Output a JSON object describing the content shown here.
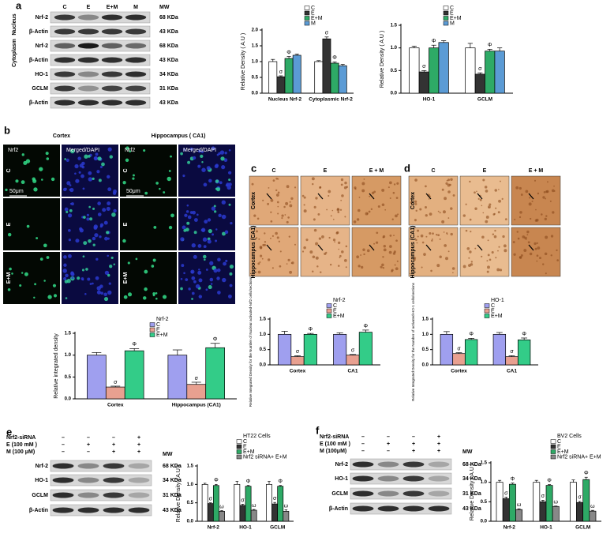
{
  "figure": {
    "panel_labels": [
      "a",
      "b",
      "c",
      "d",
      "e",
      "f"
    ],
    "blot_a": {
      "lanes": [
        "C",
        "E",
        "E+M",
        "M"
      ],
      "mw": "MW",
      "groups": [
        "Nucleus",
        "Cytoplasm"
      ],
      "rows": [
        [
          "Nrf-2",
          "68 KDa"
        ],
        [
          "β-Actin",
          "43 KDa"
        ],
        [
          "Nrf-2",
          "68 KDa"
        ],
        [
          "β-Actin",
          "43 KDa"
        ],
        [
          "HO-1",
          "34 KDa"
        ],
        [
          "GCLM",
          "31 KDa"
        ],
        [
          "β-Actin",
          "43 KDa"
        ]
      ]
    },
    "micro_b": {
      "regions": [
        "Cortex",
        "Hippocampus ( CA1)"
      ],
      "columns": [
        "Nrf2",
        "Merged/DAPI",
        "Nrf2",
        "Merged/DAPI"
      ],
      "rows": [
        "C",
        "E",
        "E+M"
      ],
      "scale": [
        "50μm",
        "50μm"
      ]
    },
    "ihc_c": {
      "columns": [
        "C",
        "E",
        "E + M"
      ],
      "rows": [
        "Cortex",
        "Hippocampus (CA1)"
      ]
    },
    "ihc_d": {
      "columns": [
        "C",
        "E",
        "E + M"
      ],
      "rows": [
        "Cortex",
        "Hippocampus (CA1)"
      ]
    },
    "blot_e": {
      "treatments": [
        [
          "Nrf2-siRNA",
          "–",
          "–",
          "–",
          "+"
        ],
        [
          "E (100 mM )",
          "–",
          "+",
          "+",
          "+"
        ],
        [
          "M (100 μM)",
          "–",
          "–",
          "+",
          "+"
        ]
      ],
      "mw": "MW",
      "rows": [
        [
          "Nrf-2",
          "68 KDa"
        ],
        [
          "HO-1",
          "34 KDa"
        ],
        [
          "GCLM",
          "31 KDa"
        ],
        [
          "β-Actin",
          "43 KDa"
        ]
      ]
    },
    "blot_f": {
      "treatments": [
        [
          "Nrf2-siRNA",
          "–",
          "–",
          "–",
          "+"
        ],
        [
          "E (100 mM )",
          "–",
          "+",
          "+",
          "+"
        ],
        [
          "M (100μM)",
          "–",
          "–",
          "+",
          "+"
        ]
      ],
      "mw": "MW",
      "rows": [
        [
          "Nrf-2",
          "68 KDa"
        ],
        [
          "HO-1",
          "34 KDa"
        ],
        [
          "GCLM",
          "31 KDa"
        ],
        [
          "β-Actin",
          "43 KDa"
        ]
      ]
    }
  },
  "chart_data": [
    {
      "type": "bar",
      "ylabel": "Relative Density ( A.U )",
      "categories": [
        "Nucleus Nrf-2",
        "Cytoplasmic Nrf-2"
      ],
      "ylim": [
        0,
        2
      ],
      "yticks": [
        {
          "value": 0,
          "label": "0.0"
        },
        0.5,
        {
          "value": 1,
          "label": "1.0"
        },
        1.5,
        {
          "value": 2,
          "label": "2.0"
        }
      ],
      "series": [
        {
          "name": "C",
          "color": "#ffffff",
          "values": [
            1.0,
            1.0
          ],
          "errors": [
            0.07,
            0.03
          ]
        },
        {
          "name": "E",
          "color": "#333333",
          "values": [
            0.52,
            1.72
          ],
          "errors": [
            0.03,
            0.06
          ],
          "marks": [
            "σ",
            "σ"
          ]
        },
        {
          "name": "E+M",
          "color": "#2eaa66",
          "values": [
            1.1,
            0.95
          ],
          "errors": [
            0.06,
            0.04
          ],
          "marks": [
            "Φ",
            "Φ"
          ]
        },
        {
          "name": "M",
          "color": "#5b9bd5",
          "values": [
            1.2,
            0.87
          ],
          "errors": [
            0.04,
            0.04
          ]
        }
      ]
    },
    {
      "type": "bar",
      "ylabel": "Relative Density ( A.U )",
      "categories": [
        "HO-1",
        "GCLM"
      ],
      "ylim": [
        0,
        1.5
      ],
      "yticks": [
        {
          "value": 0,
          "label": "0.0"
        },
        0.5,
        {
          "value": 1,
          "label": "1.0"
        },
        1.5
      ],
      "series": [
        {
          "name": "C",
          "color": "#ffffff",
          "values": [
            1.0,
            1.0
          ],
          "errors": [
            0.04,
            0.1
          ]
        },
        {
          "name": "E",
          "color": "#333333",
          "values": [
            0.47,
            0.42
          ],
          "errors": [
            0.03,
            0.03
          ],
          "marks": [
            "σ",
            "σ"
          ]
        },
        {
          "name": "E+M",
          "color": "#2eaa66",
          "values": [
            1.0,
            0.93
          ],
          "errors": [
            0.06,
            0.04
          ],
          "marks": [
            "Φ",
            "Φ"
          ]
        },
        {
          "name": "M",
          "color": "#5b9bd5",
          "values": [
            1.12,
            0.93
          ],
          "errors": [
            0.04,
            0.07
          ]
        }
      ]
    },
    {
      "type": "bar",
      "ylabel": "Relative integrated density",
      "legend_title": "Nrf-2",
      "categories": [
        "Cortex",
        "Hippocampus (CA1)"
      ],
      "ylim": [
        0,
        1.5
      ],
      "yticks": [
        {
          "value": 0,
          "label": "0.0"
        },
        0.5,
        {
          "value": 1,
          "label": "1.0"
        },
        1.5
      ],
      "series": [
        {
          "name": "C",
          "color": "#9f9fef",
          "values": [
            1.0,
            1.0
          ],
          "errors": [
            0.06,
            0.12
          ]
        },
        {
          "name": "E",
          "color": "#e8a090",
          "values": [
            0.27,
            0.33
          ],
          "errors": [
            0.02,
            0.05
          ],
          "marks": [
            "σ",
            "σ"
          ]
        },
        {
          "name": "E+M",
          "color": "#33cc88",
          "values": [
            1.1,
            1.17
          ],
          "errors": [
            0.05,
            0.1
          ],
          "marks": [
            "Φ",
            "Φ"
          ]
        }
      ]
    },
    {
      "type": "bar",
      "ylabel": "Relative Integrated Density for the Number of Nuclear activated-Nrf2 cells/sections",
      "legend_title": "Nrf-2",
      "categories": [
        "Cortex",
        "CA1"
      ],
      "ylim": [
        0,
        1.5
      ],
      "yticks": [
        {
          "value": 0,
          "label": "0.0"
        },
        0.5,
        {
          "value": 1,
          "label": "1.0"
        },
        1.5
      ],
      "series": [
        {
          "name": "C",
          "color": "#9f9fef",
          "values": [
            1.0,
            1.0
          ],
          "errors": [
            0.1,
            0.05
          ]
        },
        {
          "name": "E",
          "color": "#e8a090",
          "values": [
            0.27,
            0.32
          ],
          "errors": [
            0.03,
            0.02
          ],
          "marks": [
            "σ",
            "σ"
          ]
        },
        {
          "name": "E+M",
          "color": "#33cc88",
          "values": [
            1.0,
            1.07
          ],
          "errors": [
            0.03,
            0.07
          ],
          "marks": [
            "Φ",
            "Φ"
          ]
        }
      ]
    },
    {
      "type": "bar",
      "ylabel": "Relative Integrated Density for the Number of activated-HO-1 cells/sections",
      "legend_title": "HO-1",
      "categories": [
        "Cortex",
        "CA1"
      ],
      "ylim": [
        0,
        1.5
      ],
      "yticks": [
        {
          "value": 0,
          "label": "0.0"
        },
        0.5,
        {
          "value": 1,
          "label": "1.0"
        },
        1.5
      ],
      "series": [
        {
          "name": "C",
          "color": "#9f9fef",
          "values": [
            1.0,
            1.0
          ],
          "errors": [
            0.09,
            0.06
          ]
        },
        {
          "name": "E",
          "color": "#e8a090",
          "values": [
            0.37,
            0.27
          ],
          "errors": [
            0.03,
            0.03
          ],
          "marks": [
            "σ",
            "σ"
          ]
        },
        {
          "name": "E+M",
          "color": "#33cc88",
          "values": [
            0.83,
            0.82
          ],
          "errors": [
            0.04,
            0.06
          ],
          "marks": [
            "Φ",
            "Φ"
          ]
        }
      ]
    },
    {
      "type": "bar",
      "ylabel": "Relative Density ( A.U )",
      "legend_title": "HT22 Cells",
      "categories": [
        "Nrf-2",
        "HO-1",
        "GCLM"
      ],
      "ylim": [
        0,
        1.5
      ],
      "yticks": [
        {
          "value": 0,
          "label": "0.0"
        },
        0.5,
        {
          "value": 1,
          "label": "1.0"
        },
        1.5
      ],
      "series": [
        {
          "name": "C",
          "color": "#ffffff",
          "values": [
            1.0,
            1.0,
            1.0
          ],
          "errors": [
            0.03,
            0.08,
            0.08
          ]
        },
        {
          "name": "E",
          "color": "#333333",
          "values": [
            0.48,
            0.43,
            0.47
          ],
          "errors": [
            0.02,
            0.03,
            0.04
          ],
          "marks": [
            "σ",
            "σ",
            "σ"
          ]
        },
        {
          "name": "E+M",
          "color": "#2eaa66",
          "values": [
            0.97,
            0.95,
            0.95
          ],
          "errors": [
            0.03,
            0.02,
            0.02
          ],
          "marks": [
            "Φ",
            "Φ",
            "Φ"
          ]
        },
        {
          "name": "Nrf2 siRNA+ E+M",
          "color": "#888888",
          "values": [
            0.27,
            0.3,
            0.27
          ],
          "errors": [
            0.02,
            0.02,
            0.04
          ],
          "marks": [
            "ω",
            "ω",
            "ω"
          ]
        }
      ]
    },
    {
      "type": "bar",
      "ylabel": "Relative Density ( A.U )",
      "legend_title": "BV2 Cells",
      "categories": [
        "Nrf-2",
        "HO-1",
        "GCLM"
      ],
      "ylim": [
        0,
        1.5
      ],
      "yticks": [
        {
          "value": 0,
          "label": "0.0"
        },
        0.5,
        {
          "value": 1,
          "label": "1.0"
        },
        1.5
      ],
      "series": [
        {
          "name": "C",
          "color": "#ffffff",
          "values": [
            1.0,
            1.0,
            1.0
          ],
          "errors": [
            0.05,
            0.05,
            0.06
          ]
        },
        {
          "name": "E",
          "color": "#333333",
          "values": [
            0.58,
            0.5,
            0.48
          ],
          "errors": [
            0.04,
            0.04,
            0.03
          ],
          "marks": [
            "σ",
            "σ",
            "σ"
          ]
        },
        {
          "name": "E+M",
          "color": "#2eaa66",
          "values": [
            0.95,
            0.92,
            1.07
          ],
          "errors": [
            0.03,
            0.02,
            0.06
          ],
          "marks": [
            "Φ",
            "Φ",
            "Φ"
          ]
        },
        {
          "name": "Nrf2 siRNA+ E+M",
          "color": "#888888",
          "values": [
            0.3,
            0.38,
            0.26
          ],
          "errors": [
            0.02,
            0.01,
            0.02
          ],
          "marks": [
            "ω",
            "ω",
            "ω"
          ]
        }
      ]
    }
  ]
}
